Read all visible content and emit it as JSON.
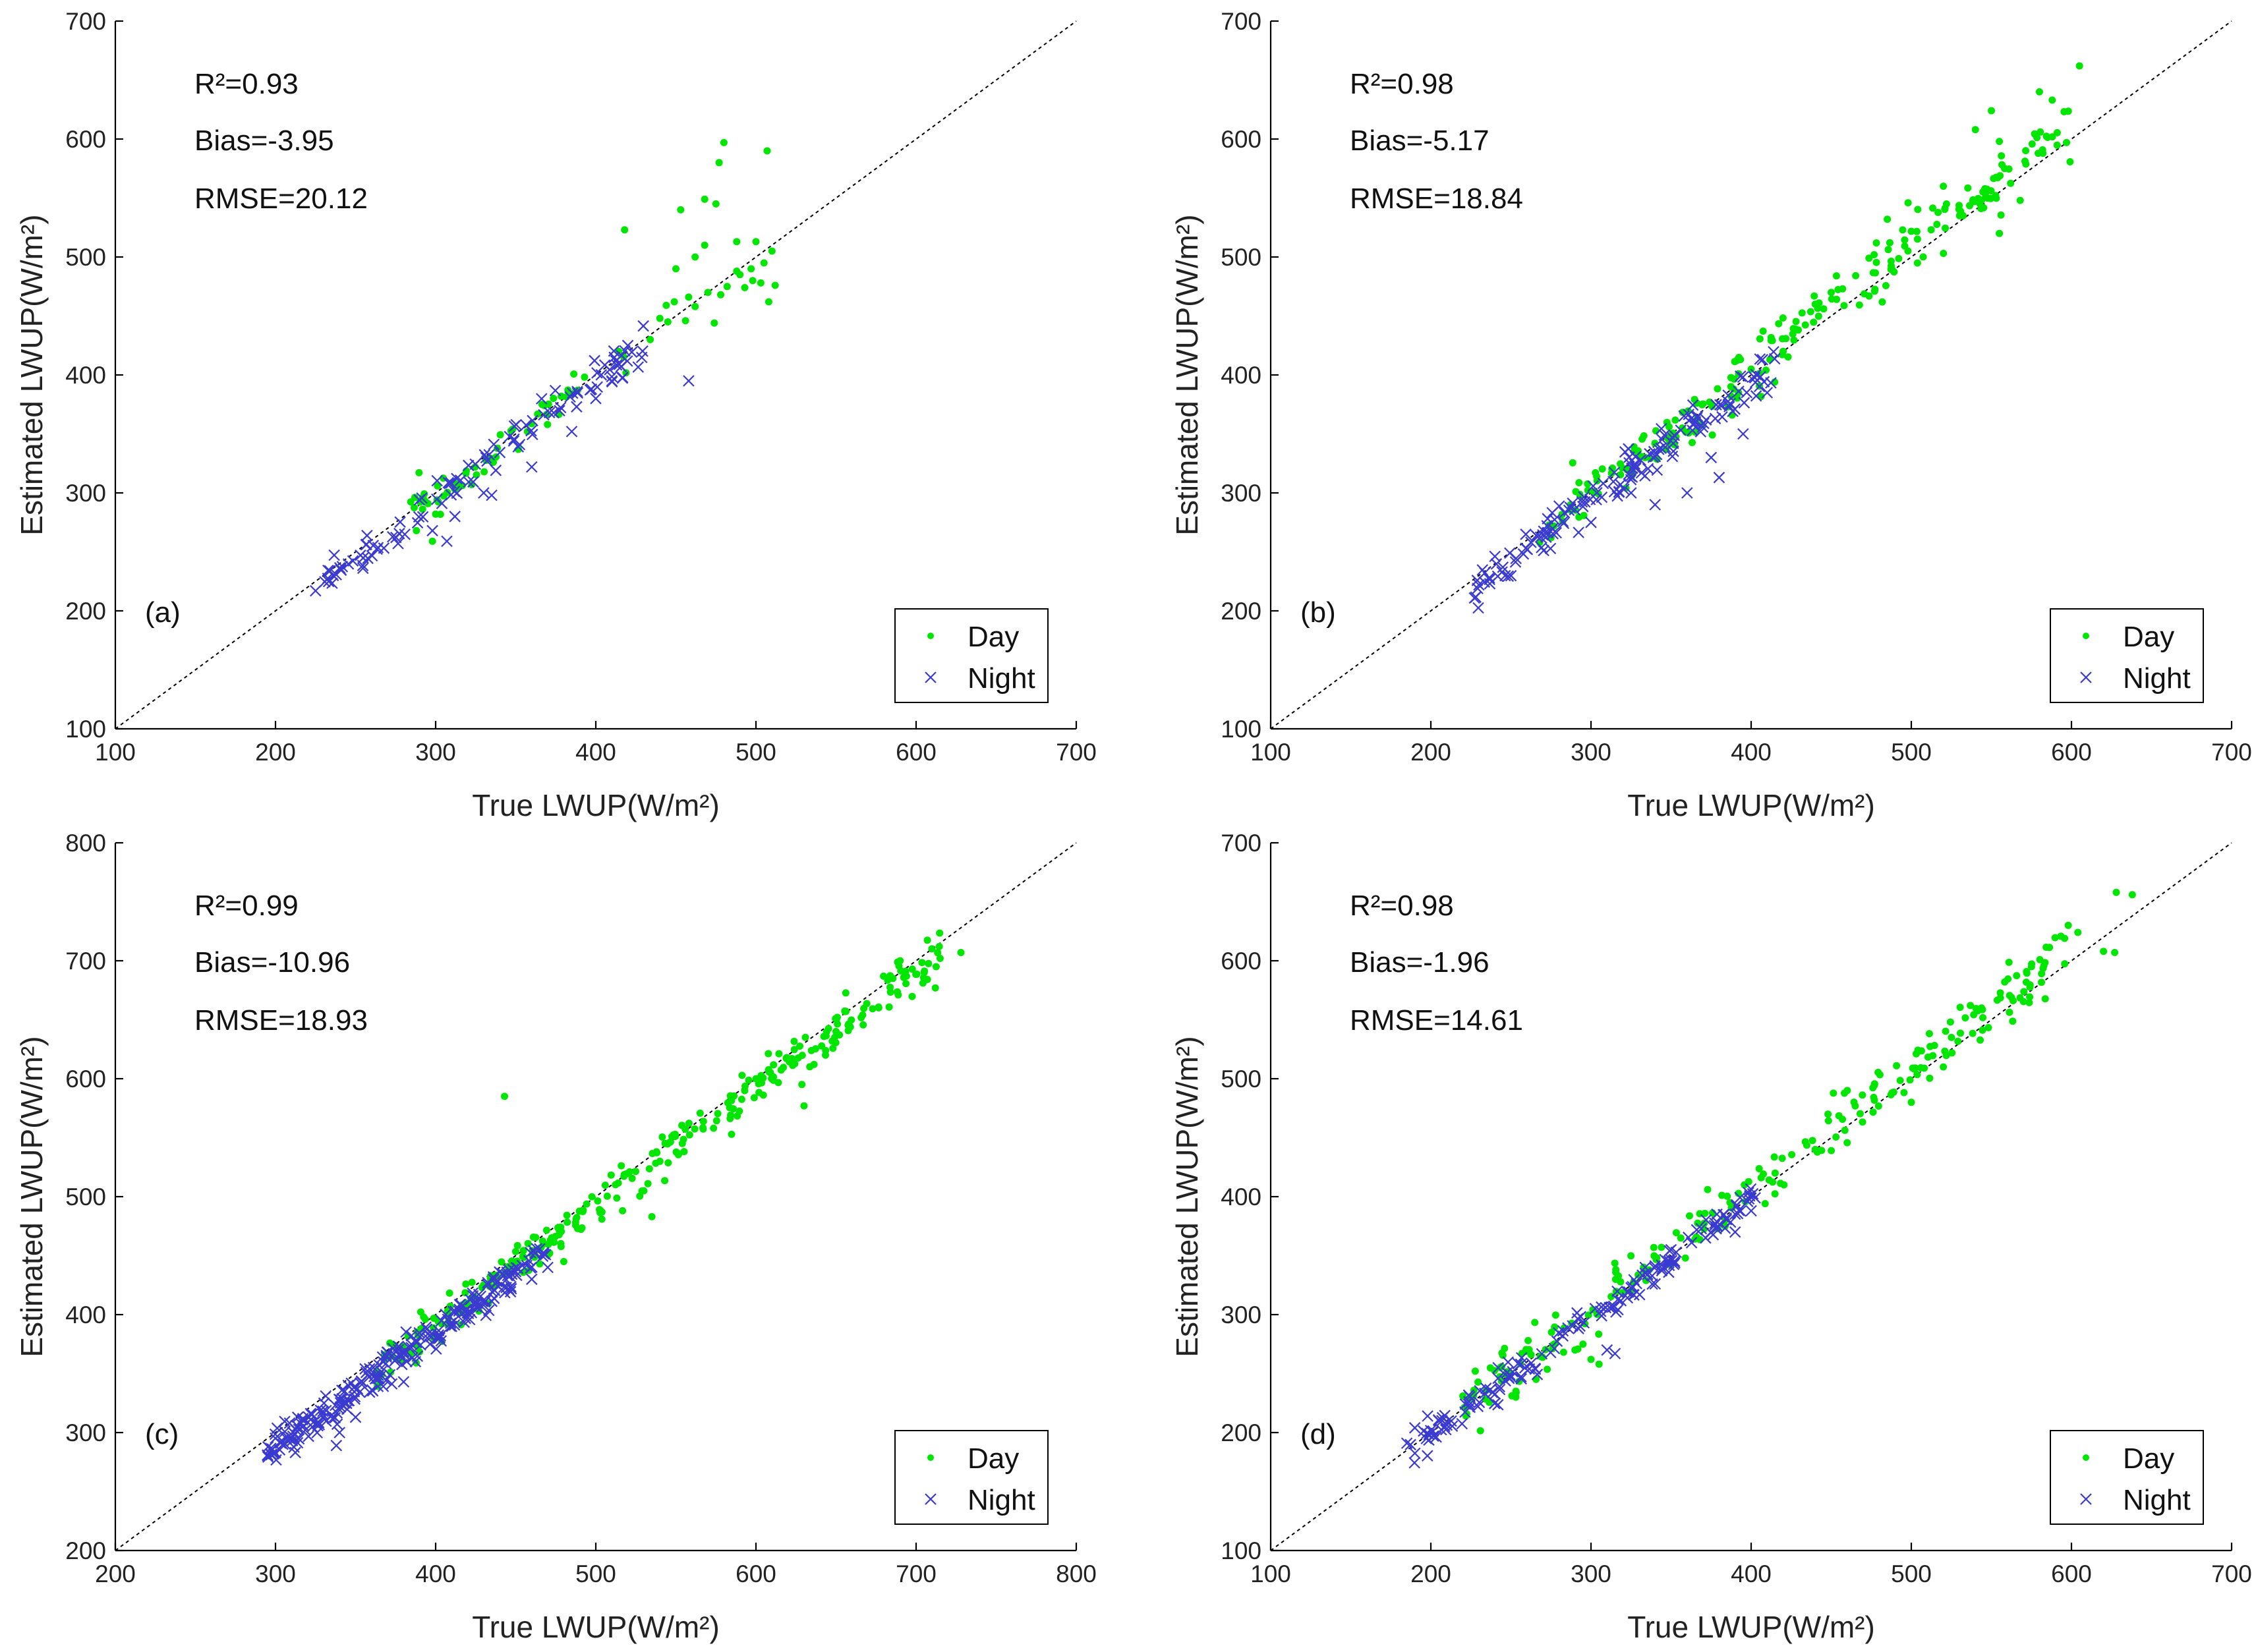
{
  "colors": {
    "day": "#00e600",
    "night": "#3a3ad0"
  },
  "legend": {
    "day_label": "Day",
    "night_label": "Night"
  },
  "chart_data": [
    {
      "type": "scatter",
      "panel_label": "(a)",
      "xlabel": "True LWUP(W/m²)",
      "ylabel": "Estimated LWUP(W/m²)",
      "xlim": [
        100,
        700
      ],
      "ylim": [
        100,
        700
      ],
      "xticks": [
        "100",
        "200",
        "300",
        "400",
        "500",
        "600",
        "700"
      ],
      "yticks": [
        "100",
        "200",
        "300",
        "400",
        "500",
        "600",
        "700"
      ],
      "stats": {
        "r2": "R²=0.93",
        "bias": "Bias=-3.95",
        "rmse": "RMSE=20.12"
      },
      "series": [
        {
          "name": "Day",
          "gen": {
            "xmin": 280,
            "xmax": 420,
            "n": 60,
            "slope": 1.0,
            "offset": -1,
            "noise": 8,
            "seed": 11
          },
          "extra": [
            [
              480,
              597
            ],
            [
              507,
              590
            ],
            [
              477,
              580
            ],
            [
              468,
              549
            ],
            [
              475,
              545
            ],
            [
              453,
              540
            ],
            [
              418,
              523
            ],
            [
              488,
              513
            ],
            [
              468,
              510
            ],
            [
              500,
              513
            ],
            [
              510,
              505
            ],
            [
              505,
              495
            ],
            [
              497,
              490
            ],
            [
              488,
              488
            ],
            [
              482,
              475
            ],
            [
              470,
              470
            ],
            [
              458,
              466
            ],
            [
              449,
              462
            ],
            [
              444,
              459
            ],
            [
              462,
              458
            ],
            [
              440,
              448
            ],
            [
              456,
              446
            ],
            [
              474,
              444
            ],
            [
              493,
              474
            ],
            [
              512,
              476
            ],
            [
              450,
              490
            ],
            [
              462,
              500
            ],
            [
              434,
              430
            ],
            [
              298,
              259
            ],
            [
              288,
              268
            ],
            [
              300,
              282
            ],
            [
              445,
              445
            ],
            [
              478,
              468
            ],
            [
              490,
              485
            ],
            [
              503,
              478
            ],
            [
              508,
              462
            ],
            [
              498,
              480
            ]
          ]
        },
        {
          "name": "Night",
          "gen": {
            "xmin": 225,
            "xmax": 430,
            "n": 110,
            "slope": 1.0,
            "offset": -4,
            "noise": 7,
            "seed": 23
          },
          "extra": [
            [
              458,
              395
            ],
            [
              307,
              259
            ],
            [
              298,
              268
            ],
            [
              312,
              280
            ],
            [
              335,
              298
            ],
            [
              360,
              322
            ],
            [
              385,
              352
            ],
            [
              400,
              380
            ],
            [
              410,
              395
            ],
            [
              420,
              425
            ],
            [
              236,
              230
            ],
            [
              225,
              217
            ],
            [
              330,
              300
            ]
          ]
        }
      ]
    },
    {
      "type": "scatter",
      "panel_label": "(b)",
      "xlabel": "True LWUP(W/m²)",
      "ylabel": "Estimated LWUP(W/m²)",
      "xlim": [
        100,
        700
      ],
      "ylim": [
        100,
        700
      ],
      "xticks": [
        "100",
        "200",
        "300",
        "400",
        "500",
        "600",
        "700"
      ],
      "yticks": [
        "100",
        "200",
        "300",
        "400",
        "500",
        "600",
        "700"
      ],
      "stats": {
        "r2": "R²=0.98",
        "bias": "Bias=-5.17",
        "rmse": "RMSE=18.84"
      },
      "series": [
        {
          "name": "Day",
          "gen": {
            "xmin": 270,
            "xmax": 600,
            "n": 220,
            "slope": 1.03,
            "offset": -8,
            "noise": 12,
            "seed": 37
          },
          "extra": [
            [
              605,
              662
            ],
            [
              580,
              640
            ],
            [
              588,
              633
            ],
            [
              550,
              624
            ],
            [
              555,
              598
            ],
            [
              540,
              608
            ],
            [
              568,
              548
            ],
            [
              555,
              520
            ],
            [
              520,
              560
            ],
            [
              498,
              546
            ],
            [
              485,
              532
            ],
            [
              450,
              470
            ],
            [
              440,
              460
            ],
            [
              420,
              420
            ],
            [
              400,
              405
            ],
            [
              275,
              262
            ],
            [
              268,
              258
            ]
          ]
        },
        {
          "name": "Night",
          "gen": {
            "xmin": 225,
            "xmax": 415,
            "n": 150,
            "slope": 1.0,
            "offset": -7,
            "noise": 8,
            "seed": 41
          },
          "extra": [
            [
              325,
              300
            ],
            [
              340,
              290
            ],
            [
              360,
              300
            ],
            [
              375,
              330
            ],
            [
              380,
              313
            ],
            [
              395,
              350
            ],
            [
              410,
              385
            ],
            [
              245,
              237
            ],
            [
              230,
              222
            ],
            [
              300,
              275
            ]
          ]
        }
      ]
    },
    {
      "type": "scatter",
      "panel_label": "(c)",
      "xlabel": "True LWUP(W/m²)",
      "ylabel": "Estimated LWUP(W/m²)",
      "xlim": [
        200,
        800
      ],
      "ylim": [
        200,
        800
      ],
      "xticks": [
        "200",
        "300",
        "400",
        "500",
        "600",
        "700",
        "800"
      ],
      "yticks": [
        "200",
        "300",
        "400",
        "500",
        "600",
        "700",
        "800"
      ],
      "stats": {
        "r2": "R²=0.99",
        "bias": "Bias=-10.96",
        "rmse": "RMSE=18.93"
      },
      "series": [
        {
          "name": "Day",
          "gen": {
            "xmin": 360,
            "xmax": 715,
            "n": 300,
            "slope": 1.0,
            "offset": -8,
            "noise": 9,
            "seed": 53
          },
          "extra": [
            [
              443,
              585
            ],
            [
              728,
              707
            ],
            [
              712,
              677
            ],
            [
              705,
              690
            ],
            [
              690,
              700
            ],
            [
              535,
              483
            ],
            [
              630,
              577
            ],
            [
              480,
              445
            ],
            [
              465,
              443
            ],
            [
              530,
              505
            ],
            [
              540,
              530
            ],
            [
              600,
              600
            ],
            [
              650,
              640
            ]
          ]
        },
        {
          "name": "Night",
          "gen": {
            "xmin": 295,
            "xmax": 470,
            "n": 260,
            "slope": 1.0,
            "offset": -14,
            "noise": 7,
            "seed": 59
          },
          "extra": [
            [
              338,
              289
            ],
            [
              340,
              300
            ],
            [
              350,
              313
            ],
            [
              380,
              343
            ],
            [
              300,
              283
            ],
            [
              295,
              281
            ],
            [
              410,
              390
            ],
            [
              460,
              430
            ],
            [
              470,
              440
            ]
          ]
        }
      ]
    },
    {
      "type": "scatter",
      "panel_label": "(d)",
      "xlabel": "True LWUP(W/m²)",
      "ylabel": "Estimated LWUP(W/m²)",
      "xlim": [
        100,
        700
      ],
      "ylim": [
        100,
        700
      ],
      "xticks": [
        "100",
        "200",
        "300",
        "400",
        "500",
        "600",
        "700"
      ],
      "yticks": [
        "100",
        "200",
        "300",
        "400",
        "500",
        "600",
        "700"
      ],
      "stats": {
        "r2": "R²=0.98",
        "bias": "Bias=-1.96",
        "rmse": "RMSE=14.61"
      },
      "series": [
        {
          "name": "Day",
          "gen": {
            "xmin": 220,
            "xmax": 600,
            "n": 230,
            "slope": 1.02,
            "offset": -2,
            "noise": 11,
            "seed": 67
          },
          "extra": [
            [
              628,
              658
            ],
            [
              638,
              656
            ],
            [
              620,
              608
            ],
            [
              627,
              607
            ],
            [
              598,
              630
            ],
            [
              604,
              624
            ],
            [
              575,
              595
            ],
            [
              305,
              258
            ],
            [
              300,
              262
            ],
            [
              295,
              275
            ],
            [
              290,
              270
            ],
            [
              440,
              440
            ],
            [
              415,
              420
            ],
            [
              448,
              470
            ],
            [
              460,
              490
            ],
            [
              500,
              480
            ],
            [
              520,
              510
            ]
          ]
        },
        {
          "name": "Night",
          "gen": {
            "xmin": 185,
            "xmax": 405,
            "n": 160,
            "slope": 1.0,
            "offset": -2,
            "noise": 6,
            "seed": 71
          },
          "extra": [
            [
              185,
              191
            ],
            [
              190,
              204
            ],
            [
              198,
              214
            ],
            [
              205,
              210
            ],
            [
              240,
              225
            ],
            [
              242,
              255
            ],
            [
              315,
              267
            ],
            [
              310,
              270
            ],
            [
              350,
              355
            ],
            [
              390,
              370
            ],
            [
              400,
              388
            ]
          ]
        }
      ]
    }
  ]
}
